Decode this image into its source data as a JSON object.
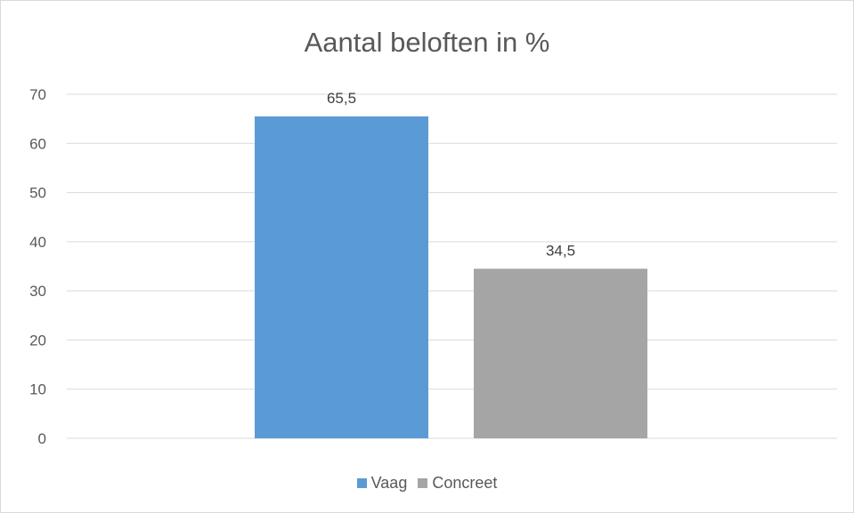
{
  "chart_data": {
    "type": "bar",
    "title": "Aantal beloften in %",
    "xlabel": "",
    "ylabel": "",
    "ylim": [
      0,
      70
    ],
    "yticks": [
      0,
      10,
      20,
      30,
      40,
      50,
      60,
      70
    ],
    "grid": true,
    "legend_position": "bottom",
    "series": [
      {
        "name": "Vaag",
        "value": 65.5,
        "label": "65,5",
        "color": "#5b9bd5"
      },
      {
        "name": "Concreet",
        "value": 34.5,
        "label": "34,5",
        "color": "#a5a5a5"
      }
    ]
  }
}
